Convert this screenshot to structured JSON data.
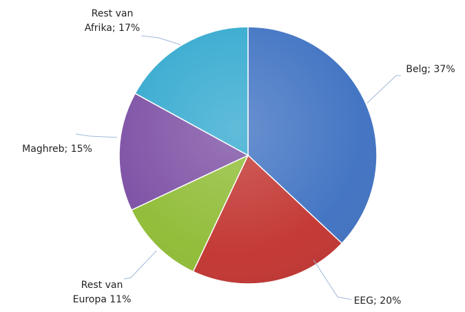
{
  "chart_data": {
    "type": "pie",
    "title": "",
    "start": "top",
    "direction": "clockwise",
    "legend": "none",
    "slices": [
      {
        "name": "Belg",
        "value": 37,
        "label_lines": [
          "Belg; 37%"
        ],
        "color": "#3f72c2"
      },
      {
        "name": "EEG",
        "value": 20,
        "label_lines": [
          "EEG; 20%"
        ],
        "color": "#c23430"
      },
      {
        "name": "Rest van Europa",
        "value": 11,
        "label_lines": [
          "Rest van",
          "Europa 11%"
        ],
        "color": "#8fbc35"
      },
      {
        "name": "Maghreb",
        "value": 15,
        "label_lines": [
          "Maghreb; 15%"
        ],
        "color": "#7c4fa4"
      },
      {
        "name": "Rest van Afrika",
        "value": 17,
        "label_lines": [
          "Rest van",
          "Afrika; 17%"
        ],
        "color": "#33a9cf"
      }
    ]
  }
}
